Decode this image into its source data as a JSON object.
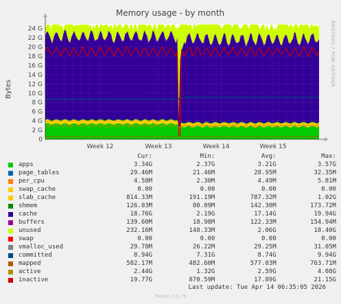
{
  "chart_data": {
    "type": "area",
    "title": "Memory usage - by month",
    "ylabel": "Bytes",
    "watermark": "RRDTOOL / TOBI OETIKER",
    "ylim": [
      0,
      25
    ],
    "y_unit": "G",
    "y_ticks": [
      "0",
      "2 G",
      "4 G",
      "6 G",
      "8 G",
      "10 G",
      "12 G",
      "14 G",
      "16 G",
      "18 G",
      "20 G",
      "22 G",
      "24 G"
    ],
    "x_ticks": [
      "Week 12",
      "Week 13",
      "Week 14",
      "Week 15"
    ],
    "stacked_series_order": [
      "apps",
      "page_tables",
      "per_cpu",
      "swap_cache",
      "slab_cache",
      "shmem",
      "cache",
      "buffers",
      "unused",
      "swap"
    ],
    "line_series": [
      "vmalloc_used",
      "committed",
      "mapped",
      "active",
      "inactive"
    ],
    "series": [
      {
        "name": "apps",
        "color": "#00cc00",
        "cur": "3.34G",
        "min": "2.37G",
        "avg": "3.21G",
        "max": "3.57G"
      },
      {
        "name": "page_tables",
        "color": "#0066b3",
        "cur": "29.46M",
        "min": "21.46M",
        "avg": "28.95M",
        "max": "32.35M"
      },
      {
        "name": "per_cpu",
        "color": "#ff8000",
        "cur": "4.58M",
        "min": "2.30M",
        "avg": "4.49M",
        "max": "5.81M"
      },
      {
        "name": "swap_cache",
        "color": "#ffcc00",
        "cur": "0.00",
        "min": "0.00",
        "avg": "0.00",
        "max": "0.00"
      },
      {
        "name": "slab_cache",
        "color": "#ffcc00",
        "cur": "814.33M",
        "min": "191.19M",
        "avg": "787.32M",
        "max": "1.02G"
      },
      {
        "name": "shmem",
        "color": "#008f00",
        "cur": "126.03M",
        "min": "80.09M",
        "avg": "142.30M",
        "max": "173.72M"
      },
      {
        "name": "cache",
        "color": "#330099",
        "cur": "18.76G",
        "min": "2.19G",
        "avg": "17.14G",
        "max": "19.94G"
      },
      {
        "name": "buffers",
        "color": "#990099",
        "cur": "139.60M",
        "min": "18.98M",
        "avg": "122.33M",
        "max": "154.94M"
      },
      {
        "name": "unused",
        "color": "#ccff00",
        "cur": "232.16M",
        "min": "148.33M",
        "avg": "2.06G",
        "max": "18.40G"
      },
      {
        "name": "swap",
        "color": "#ff0000",
        "cur": "0.00",
        "min": "0.00",
        "avg": "0.00",
        "max": "0.00"
      },
      {
        "name": "vmalloc_used",
        "color": "#808080",
        "cur": "29.78M",
        "min": "26.22M",
        "avg": "29.25M",
        "max": "31.05M"
      },
      {
        "name": "committed",
        "color": "#004d80",
        "cur": "8.94G",
        "min": "7.31G",
        "avg": "8.74G",
        "max": "9.94G"
      },
      {
        "name": "mapped",
        "color": "#b35a00",
        "cur": "582.17M",
        "min": "482.60M",
        "avg": "577.03M",
        "max": "763.71M"
      },
      {
        "name": "active",
        "color": "#b38f00",
        "cur": "2.44G",
        "min": "1.32G",
        "avg": "2.59G",
        "max": "4.08G"
      },
      {
        "name": "inactive",
        "color": "#cc0000",
        "cur": "19.77G",
        "min": "870.59M",
        "avg": "17.89G",
        "max": "21.15G"
      }
    ]
  },
  "legend": {
    "col_cur": "Cur:",
    "col_min": "Min:",
    "col_avg": "Avg:",
    "col_max": "Max:"
  },
  "footer": {
    "last_update": "Last update: Tue Apr 14 06:35:05 2026",
    "munin": "Munin 2.0.75"
  }
}
